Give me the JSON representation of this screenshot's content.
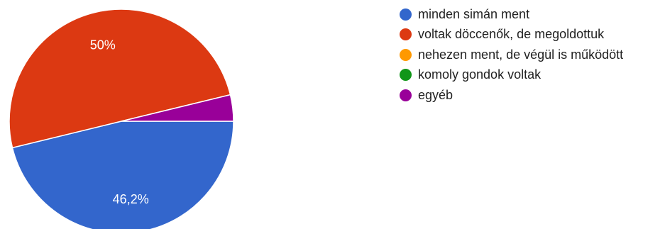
{
  "chart_data": {
    "type": "pie",
    "series": [
      {
        "name": "minden simán ment",
        "value": 46.2,
        "label": "46,2%",
        "color": "#3366cc"
      },
      {
        "name": "voltak döccenők, de megoldottuk",
        "value": 50,
        "label": "50%",
        "color": "#dc3912"
      },
      {
        "name": "nehezen ment, de végül is működött",
        "value": 0,
        "label": "",
        "color": "#ff9900"
      },
      {
        "name": "komoly gondok voltak",
        "value": 0,
        "label": "",
        "color": "#109618"
      },
      {
        "name": "egyéb",
        "value": 3.8,
        "label": "",
        "color": "#990099"
      }
    ],
    "legend_position": "right"
  }
}
